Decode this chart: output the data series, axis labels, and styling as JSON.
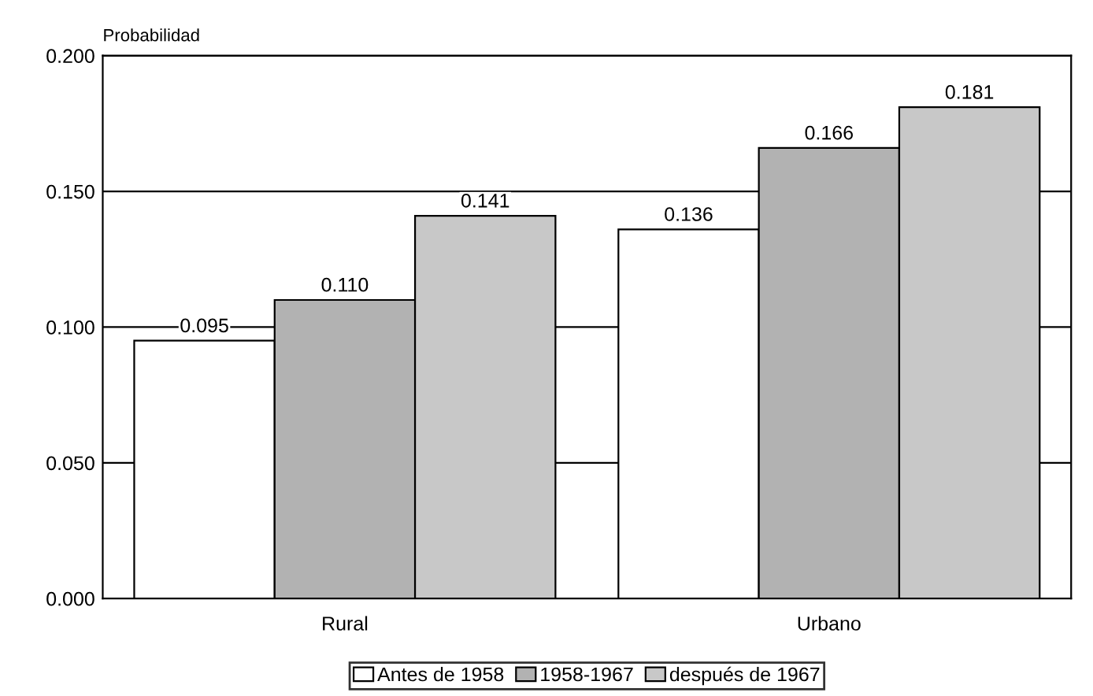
{
  "chart_data": {
    "type": "bar",
    "ylabel": "Probabilidad",
    "categories": [
      "Rural",
      "Urbano"
    ],
    "series": [
      {
        "name": "Antes de 1958",
        "color": "#ffffff",
        "values": [
          0.095,
          0.136
        ],
        "value_labels": [
          "0.095",
          "0.136"
        ]
      },
      {
        "name": "1958-1967",
        "color": "#b2b2b2",
        "values": [
          0.11,
          0.166
        ],
        "value_labels": [
          "0.110",
          "0.166"
        ]
      },
      {
        "name": "después de 1967",
        "color": "#c8c8c8",
        "values": [
          0.141,
          0.181
        ],
        "value_labels": [
          "0.141",
          "0.181"
        ]
      }
    ],
    "ylim": [
      0,
      0.2
    ],
    "yticks": [
      {
        "value": 0,
        "label": "0.000"
      },
      {
        "value": 0.05,
        "label": "0.050"
      },
      {
        "value": 0.1,
        "label": "0.100"
      },
      {
        "value": 0.15,
        "label": "0.150"
      },
      {
        "value": 0.2,
        "label": "0.200"
      }
    ],
    "grid": "y",
    "legend": "bottom"
  }
}
